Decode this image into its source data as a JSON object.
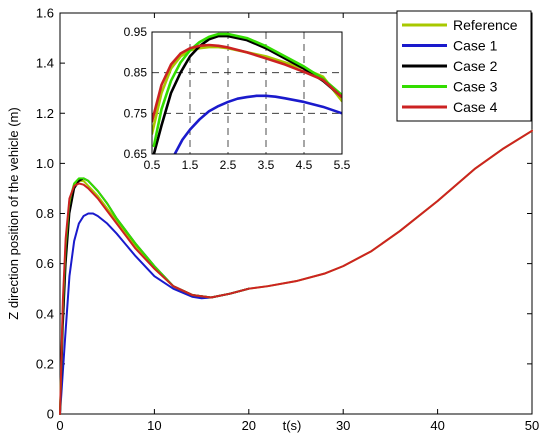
{
  "chart_data": [
    {
      "id": "main",
      "type": "line",
      "title": "",
      "xlabel": "t(s)",
      "ylabel": "Z direction position of the vehicle (m)",
      "xlim": [
        0,
        50
      ],
      "ylim": [
        0,
        1.6
      ],
      "xticks": [
        "0",
        "10",
        "20",
        "30",
        "40",
        "50"
      ],
      "yticks": [
        "0",
        "0.2",
        "0.4",
        "0.6",
        "0.8",
        "1.0",
        "1.2",
        "1.4",
        "1.6"
      ],
      "grid": false,
      "legend": "top-right",
      "series": [
        {
          "name": "Reference",
          "color": "#a8c800",
          "x": [
            0,
            0.3,
            0.6,
            1,
            1.5,
            2,
            2.5,
            3,
            4,
            5,
            6,
            8,
            10,
            12,
            14,
            16,
            18,
            20,
            22,
            25,
            28,
            30,
            33,
            36,
            40,
            44,
            47,
            50
          ],
          "y": [
            0,
            0.4,
            0.66,
            0.84,
            0.91,
            0.93,
            0.93,
            0.91,
            0.87,
            0.82,
            0.77,
            0.67,
            0.58,
            0.51,
            0.475,
            0.465,
            0.48,
            0.5,
            0.51,
            0.53,
            0.56,
            0.59,
            0.65,
            0.73,
            0.85,
            0.98,
            1.06,
            1.13
          ]
        },
        {
          "name": "Case 1",
          "color": "#1a1acc",
          "x": [
            0,
            0.5,
            1,
            1.5,
            2,
            2.5,
            3,
            3.5,
            4,
            5,
            6,
            8,
            10,
            12,
            14,
            15,
            16,
            18,
            20
          ],
          "y": [
            0,
            0.28,
            0.55,
            0.69,
            0.76,
            0.79,
            0.8,
            0.8,
            0.79,
            0.76,
            0.72,
            0.63,
            0.55,
            0.5,
            0.468,
            0.462,
            0.465,
            0.48,
            0.5
          ]
        },
        {
          "name": "Case 2",
          "color": "#000000",
          "x": [
            0,
            0.3,
            0.6,
            1,
            1.5,
            2,
            2.5,
            3,
            4,
            5,
            6,
            8,
            10,
            12,
            14,
            16,
            18,
            20
          ],
          "y": [
            0,
            0.35,
            0.6,
            0.8,
            0.9,
            0.93,
            0.94,
            0.93,
            0.89,
            0.84,
            0.78,
            0.68,
            0.59,
            0.51,
            0.475,
            0.465,
            0.48,
            0.5
          ]
        },
        {
          "name": "Case 3",
          "color": "#33dd00",
          "x": [
            0,
            0.3,
            0.6,
            1,
            1.5,
            2,
            2.5,
            3,
            4,
            5,
            6,
            8,
            10,
            12,
            14,
            16,
            18,
            20
          ],
          "y": [
            0,
            0.42,
            0.67,
            0.85,
            0.92,
            0.94,
            0.94,
            0.93,
            0.89,
            0.84,
            0.78,
            0.68,
            0.59,
            0.51,
            0.475,
            0.465,
            0.48,
            0.5
          ]
        },
        {
          "name": "Case 4",
          "color": "#cc2222",
          "x": [
            0,
            0.3,
            0.6,
            1,
            1.5,
            2,
            2.5,
            3,
            4,
            5,
            6,
            8,
            10,
            12,
            14,
            16,
            18,
            20,
            22,
            25,
            28,
            30,
            33,
            36,
            40,
            44,
            47,
            50
          ],
          "y": [
            0,
            0.45,
            0.7,
            0.86,
            0.91,
            0.92,
            0.915,
            0.9,
            0.86,
            0.81,
            0.76,
            0.66,
            0.58,
            0.51,
            0.475,
            0.465,
            0.48,
            0.5,
            0.51,
            0.53,
            0.56,
            0.59,
            0.65,
            0.73,
            0.85,
            0.98,
            1.06,
            1.13
          ]
        }
      ]
    },
    {
      "id": "inset",
      "type": "line",
      "title": "",
      "xlabel": "",
      "ylabel": "",
      "xlim": [
        0.5,
        5.5
      ],
      "ylim": [
        0.65,
        0.95
      ],
      "xticks": [
        "0.5",
        "1.5",
        "2.5",
        "3.5",
        "4.5",
        "5.5"
      ],
      "yticks": [
        "0.65",
        "0.75",
        "0.85",
        "0.95"
      ],
      "grid": true,
      "series": [
        {
          "name": "Reference",
          "color": "#a8c800",
          "x": [
            0.5,
            0.75,
            1,
            1.25,
            1.5,
            1.75,
            2,
            2.25,
            2.5,
            3,
            3.5,
            4,
            4.5,
            5,
            5.5
          ],
          "y": [
            0.7,
            0.8,
            0.86,
            0.89,
            0.905,
            0.91,
            0.913,
            0.913,
            0.91,
            0.9,
            0.89,
            0.875,
            0.86,
            0.84,
            0.78
          ]
        },
        {
          "name": "Case 1",
          "color": "#1a1acc",
          "x": [
            1.1,
            1.3,
            1.5,
            1.75,
            2,
            2.25,
            2.5,
            2.75,
            3,
            3.25,
            3.5,
            3.75,
            4,
            4.5,
            5,
            5.5
          ],
          "y": [
            0.65,
            0.685,
            0.71,
            0.735,
            0.755,
            0.768,
            0.778,
            0.786,
            0.79,
            0.793,
            0.793,
            0.791,
            0.787,
            0.778,
            0.766,
            0.75
          ]
        },
        {
          "name": "Case 2",
          "color": "#000000",
          "x": [
            0.55,
            0.75,
            1,
            1.25,
            1.5,
            1.75,
            2,
            2.25,
            2.5,
            3,
            3.5,
            4,
            4.5,
            5,
            5.5
          ],
          "y": [
            0.65,
            0.72,
            0.8,
            0.85,
            0.89,
            0.915,
            0.932,
            0.94,
            0.94,
            0.93,
            0.91,
            0.885,
            0.86,
            0.83,
            0.79
          ]
        },
        {
          "name": "Case 3",
          "color": "#33dd00",
          "x": [
            0.55,
            0.75,
            1,
            1.25,
            1.5,
            1.75,
            2,
            2.25,
            2.5,
            3,
            3.5,
            4,
            4.5,
            5,
            5.5
          ],
          "y": [
            0.67,
            0.76,
            0.83,
            0.875,
            0.905,
            0.925,
            0.938,
            0.945,
            0.945,
            0.935,
            0.915,
            0.89,
            0.865,
            0.835,
            0.795
          ]
        },
        {
          "name": "Case 4",
          "color": "#cc2222",
          "x": [
            0.5,
            0.75,
            1,
            1.25,
            1.5,
            1.75,
            2,
            2.25,
            2.5,
            3,
            3.5,
            4,
            4.5,
            5,
            5.5
          ],
          "y": [
            0.73,
            0.82,
            0.87,
            0.897,
            0.91,
            0.916,
            0.918,
            0.916,
            0.912,
            0.9,
            0.885,
            0.87,
            0.852,
            0.832,
            0.79
          ]
        }
      ]
    }
  ]
}
